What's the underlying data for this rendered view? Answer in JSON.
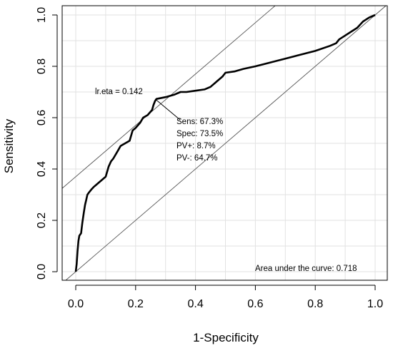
{
  "chart_data": {
    "type": "line",
    "title": "",
    "xlabel": "1-Specificity",
    "ylabel": "Sensitivity",
    "xlim": [
      0,
      1
    ],
    "ylim": [
      0,
      1
    ],
    "x_ticks": [
      "0.0",
      "0.2",
      "0.4",
      "0.6",
      "0.8",
      "1.0"
    ],
    "y_ticks": [
      "0.0",
      "0.2",
      "0.4",
      "0.6",
      "0.8",
      "1.0"
    ],
    "grid": true,
    "series": [
      {
        "values_xy": [
          [
            0.0,
            0.0
          ],
          [
            0.003,
            0.03
          ],
          [
            0.006,
            0.08
          ],
          [
            0.009,
            0.12
          ],
          [
            0.012,
            0.14
          ],
          [
            0.018,
            0.15
          ],
          [
            0.022,
            0.19
          ],
          [
            0.027,
            0.23
          ],
          [
            0.031,
            0.26
          ],
          [
            0.035,
            0.28
          ],
          [
            0.039,
            0.3
          ],
          [
            0.045,
            0.31
          ],
          [
            0.052,
            0.32
          ],
          [
            0.06,
            0.33
          ],
          [
            0.07,
            0.34
          ],
          [
            0.08,
            0.35
          ],
          [
            0.09,
            0.36
          ],
          [
            0.1,
            0.37
          ],
          [
            0.105,
            0.39
          ],
          [
            0.11,
            0.41
          ],
          [
            0.118,
            0.43
          ],
          [
            0.125,
            0.44
          ],
          [
            0.13,
            0.45
          ],
          [
            0.14,
            0.47
          ],
          [
            0.15,
            0.49
          ],
          [
            0.165,
            0.5
          ],
          [
            0.18,
            0.51
          ],
          [
            0.185,
            0.53
          ],
          [
            0.19,
            0.55
          ],
          [
            0.2,
            0.56
          ],
          [
            0.215,
            0.58
          ],
          [
            0.225,
            0.6
          ],
          [
            0.24,
            0.61
          ],
          [
            0.255,
            0.63
          ],
          [
            0.26,
            0.65
          ],
          [
            0.265,
            0.665
          ],
          [
            0.27,
            0.673
          ],
          [
            0.3,
            0.68
          ],
          [
            0.33,
            0.69
          ],
          [
            0.35,
            0.7
          ],
          [
            0.37,
            0.7
          ],
          [
            0.4,
            0.705
          ],
          [
            0.43,
            0.71
          ],
          [
            0.45,
            0.72
          ],
          [
            0.47,
            0.74
          ],
          [
            0.49,
            0.76
          ],
          [
            0.5,
            0.775
          ],
          [
            0.53,
            0.78
          ],
          [
            0.56,
            0.79
          ],
          [
            0.6,
            0.8
          ],
          [
            0.65,
            0.815
          ],
          [
            0.7,
            0.83
          ],
          [
            0.75,
            0.845
          ],
          [
            0.8,
            0.86
          ],
          [
            0.85,
            0.88
          ],
          [
            0.87,
            0.89
          ],
          [
            0.88,
            0.905
          ],
          [
            0.9,
            0.92
          ],
          [
            0.92,
            0.935
          ],
          [
            0.94,
            0.95
          ],
          [
            0.96,
            0.975
          ],
          [
            0.98,
            0.99
          ],
          [
            1.0,
            1.0
          ]
        ]
      }
    ],
    "reference_lines": [
      {
        "intercept": 0,
        "slope": 1
      },
      {
        "intercept": 0.37,
        "slope": 1
      }
    ],
    "cutoff_point": {
      "x": 0.265,
      "y": 0.673
    },
    "annotations": {
      "cutoff_label": "lr.eta = 0.142",
      "sens": "Sens: 67.3%",
      "spec": "Spec: 73.5%",
      "pv_pos": "PV+: 8.7%",
      "pv_neg": "PV-: 64.7%",
      "auc": "Area under the curve: 0.718"
    },
    "colors": {
      "curve": "#000000",
      "reference": "#555555",
      "grid": "#e2e2e2",
      "axis": "#000000"
    }
  }
}
